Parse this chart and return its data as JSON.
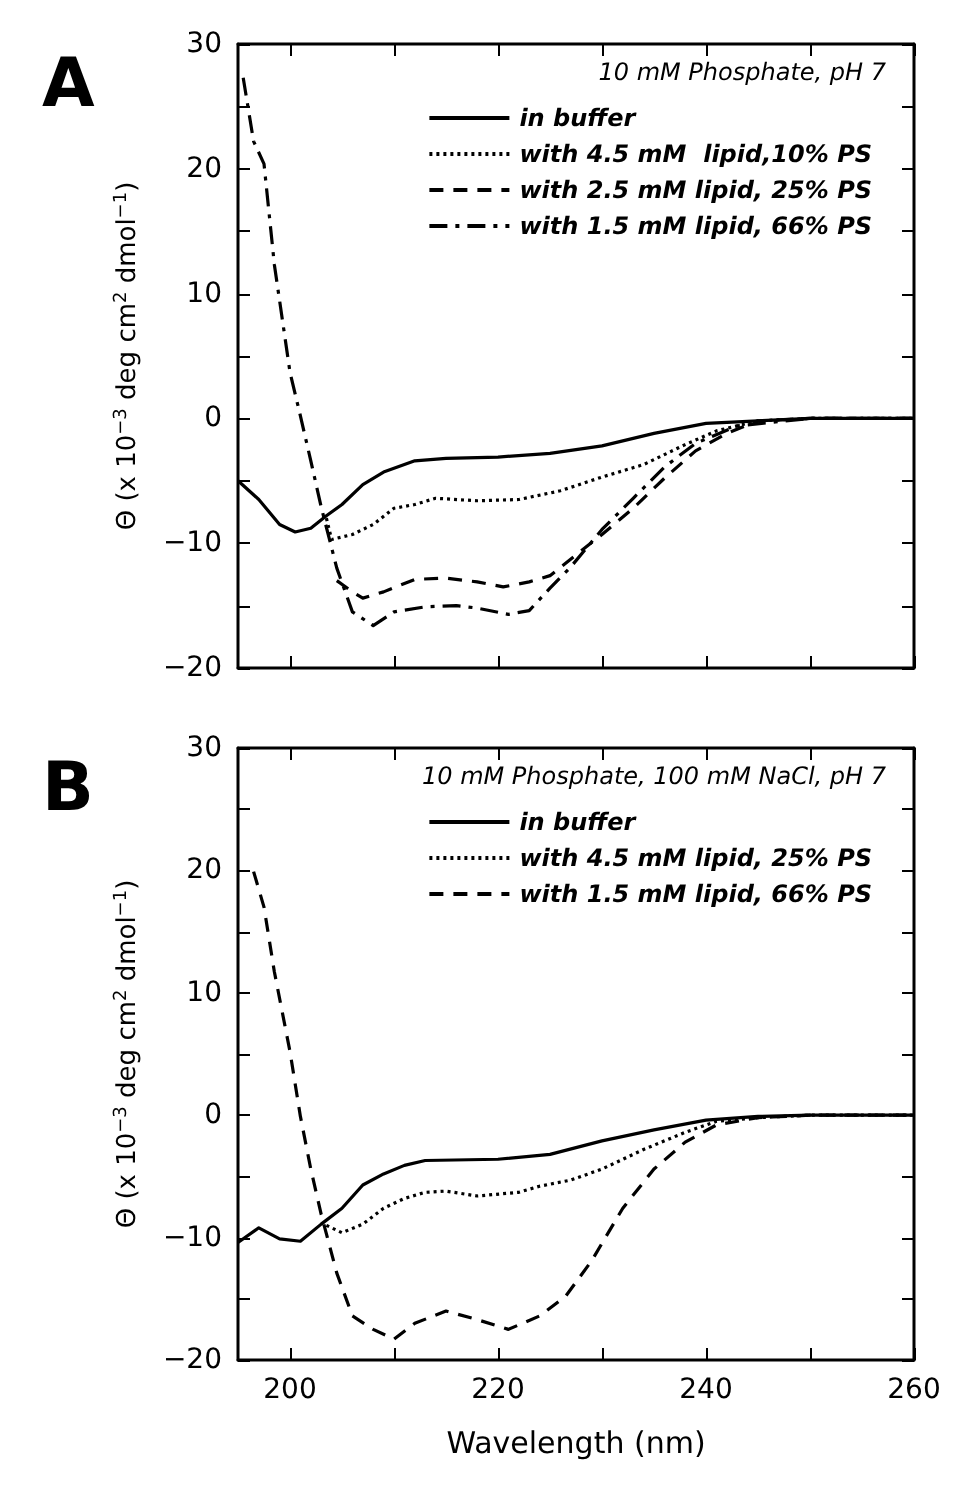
{
  "chart_data": [
    {
      "type": "line",
      "title": "A",
      "legend_title": "10 mM Phosphate, pH 7",
      "ylabel": "Θ (x 10$^{−3}$ deg cm$^{2}$ dmol$^{−1}$)",
      "xlim": [
        195,
        260
      ],
      "xticks": [
        200,
        {
          "value": 210,
          "label": null
        },
        220,
        {
          "value": 230,
          "label": null
        },
        240,
        {
          "value": 250,
          "label": null
        },
        260
      ],
      "ylim": [
        -20,
        30
      ],
      "yticks": [
        -20,
        {
          "value": -15,
          "label": null
        },
        -10,
        {
          "value": -5,
          "label": null
        },
        0,
        {
          "value": 5,
          "label": null
        },
        10,
        {
          "value": 15,
          "label": null
        },
        20,
        {
          "value": 25,
          "label": null
        },
        30
      ],
      "tick_labels": "y",
      "grid": false,
      "legend": "top right",
      "marker": "none",
      "series": [
        {
          "name": "in buffer",
          "color": "#000000",
          "line_style": "solid",
          "x": [
            195,
            197,
            199,
            200.5,
            202,
            203.5,
            205,
            207,
            209,
            212,
            215,
            220,
            225,
            230,
            235,
            240,
            245,
            250,
            260
          ],
          "values": [
            -5,
            -6.5,
            -8.5,
            -9.1,
            -8.8,
            -7.8,
            -6.9,
            -5.3,
            -4.3,
            -3.4,
            -3.2,
            -3.1,
            -2.8,
            -2.2,
            -1.2,
            -0.4,
            -0.2,
            0,
            0
          ]
        },
        {
          "name": "with 4.5 mM  lipid,10% PS",
          "color": "#000000",
          "line_style": "dotted",
          "x": [
            203.5,
            204,
            206,
            208,
            210,
            212,
            214,
            218,
            222,
            226,
            230,
            234,
            238,
            241,
            245,
            250,
            260
          ],
          "values": [
            -8,
            -9.7,
            -9.3,
            -8.5,
            -7.2,
            -6.9,
            -6.4,
            -6.6,
            -6.5,
            -5.8,
            -4.7,
            -3.7,
            -2.1,
            -1.0,
            -0.2,
            0,
            0
          ]
        },
        {
          "name": "with 2.5 mM lipid, 25% PS",
          "color": "#000000",
          "line_style": "dashed",
          "x": [
            204.5,
            206,
            207,
            209,
            212,
            215,
            218,
            220.5,
            223,
            225,
            228,
            230,
            233,
            236,
            239,
            242,
            245,
            250,
            260
          ],
          "values": [
            -13,
            -13.9,
            -14.4,
            -13.9,
            -12.9,
            -12.8,
            -13.1,
            -13.5,
            -13.1,
            -12.6,
            -10.6,
            -9.3,
            -7.2,
            -4.8,
            -2.6,
            -1.2,
            -0.2,
            0,
            0
          ]
        },
        {
          "name": "with 1.5 mM lipid, 66% PS",
          "color": "#000000",
          "line_style": "dashdot",
          "x": [
            195.5,
            196.5,
            197.5,
            198.5,
            200,
            201,
            202,
            203,
            204.5,
            206,
            208,
            210,
            213,
            216,
            218,
            221,
            223,
            225,
            227,
            230,
            233,
            236,
            239,
            243,
            250,
            260
          ],
          "values": [
            27.3,
            22.2,
            20.4,
            12.3,
            3.7,
            0.2,
            -3.4,
            -7.1,
            -12,
            -15.5,
            -16.6,
            -15.5,
            -15.1,
            -15,
            -15.2,
            -15.7,
            -15.4,
            -13.6,
            -11.9,
            -8.9,
            -6.4,
            -3.9,
            -2.0,
            -0.6,
            0,
            0
          ]
        }
      ]
    },
    {
      "type": "line",
      "title": "B",
      "legend_title": "10 mM Phosphate, 100 mM NaCl, pH 7",
      "xlabel": "Wavelength (nm)",
      "ylabel": "Θ (x 10$^{−3}$ deg cm$^{2}$ dmol$^{−1}$)",
      "xlim": [
        195,
        260
      ],
      "xticks": [
        200,
        {
          "value": 210,
          "label": null
        },
        220,
        {
          "value": 230,
          "label": null
        },
        240,
        {
          "value": 250,
          "label": null
        },
        260
      ],
      "ylim": [
        -20,
        30
      ],
      "yticks": [
        -20,
        {
          "value": -15,
          "label": null
        },
        -10,
        {
          "value": -5,
          "label": null
        },
        0,
        {
          "value": 5,
          "label": null
        },
        10,
        {
          "value": 15,
          "label": null
        },
        20,
        {
          "value": 25,
          "label": null
        },
        30
      ],
      "grid": false,
      "legend": "top right",
      "marker": "none",
      "series": [
        {
          "name": "in buffer",
          "color": "#000000",
          "line_style": "solid",
          "x": [
            195,
            197,
            199,
            201,
            203,
            205,
            207,
            209,
            211,
            213,
            220,
            225,
            230,
            235,
            240,
            245,
            250,
            260
          ],
          "values": [
            -10.4,
            -9.2,
            -10.1,
            -10.3,
            -8.9,
            -7.6,
            -5.7,
            -4.8,
            -4.1,
            -3.7,
            -3.6,
            -3.2,
            -2.1,
            -1.2,
            -0.4,
            -0.1,
            0,
            0
          ]
        },
        {
          "name": "with 4.5 mM lipid, 25% PS",
          "color": "#000000",
          "line_style": "dotted",
          "x": [
            203.5,
            205,
            207,
            209,
            211,
            213,
            215,
            218,
            222,
            224,
            227,
            230,
            234,
            238,
            241,
            245,
            250,
            260
          ],
          "values": [
            -9,
            -9.6,
            -8.9,
            -7.6,
            -6.8,
            -6.3,
            -6.2,
            -6.6,
            -6.3,
            -5.8,
            -5.3,
            -4.4,
            -2.8,
            -1.4,
            -0.5,
            -0.2,
            0,
            0
          ]
        },
        {
          "name": "with 1.5 mM lipid, 66% PS",
          "color": "#000000",
          "line_style": "dashed",
          "x": [
            196.5,
            197.5,
            198.5,
            200,
            201,
            202,
            203,
            204.5,
            206,
            208,
            210,
            212,
            215,
            218,
            221,
            224,
            226.5,
            229,
            232,
            235,
            238,
            241,
            245,
            250,
            260
          ],
          "values": [
            19.9,
            17,
            11.7,
            5.2,
            -0.1,
            -4.4,
            -8.1,
            -12.9,
            -16.4,
            -17.5,
            -18.3,
            -17,
            -16,
            -16.7,
            -17.5,
            -16.4,
            -14.8,
            -11.9,
            -7.6,
            -4.4,
            -2.2,
            -0.8,
            -0.2,
            0,
            0
          ]
        }
      ]
    }
  ]
}
